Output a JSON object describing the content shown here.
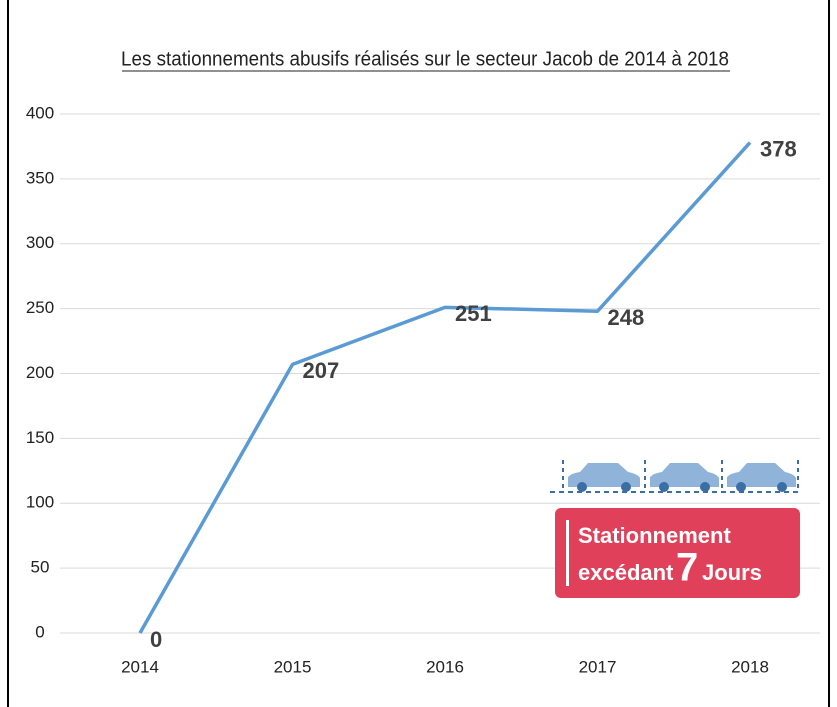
{
  "chart_data": {
    "type": "line",
    "title": "Les stationnements abusifs réalisés sur le secteur Jacob de 2014 à 2018",
    "categories": [
      "2014",
      "2015",
      "2016",
      "2017",
      "2018"
    ],
    "values": [
      0,
      207,
      251,
      248,
      378
    ],
    "color": "#5b9bd5",
    "ylim": [
      0,
      400
    ],
    "yticks": [
      0,
      50,
      100,
      150,
      200,
      250,
      300,
      350,
      400
    ],
    "grid": true,
    "badge": {
      "line1": "Stationnement",
      "line2": "excédant",
      "number": "7",
      "line3": "Jours"
    }
  }
}
